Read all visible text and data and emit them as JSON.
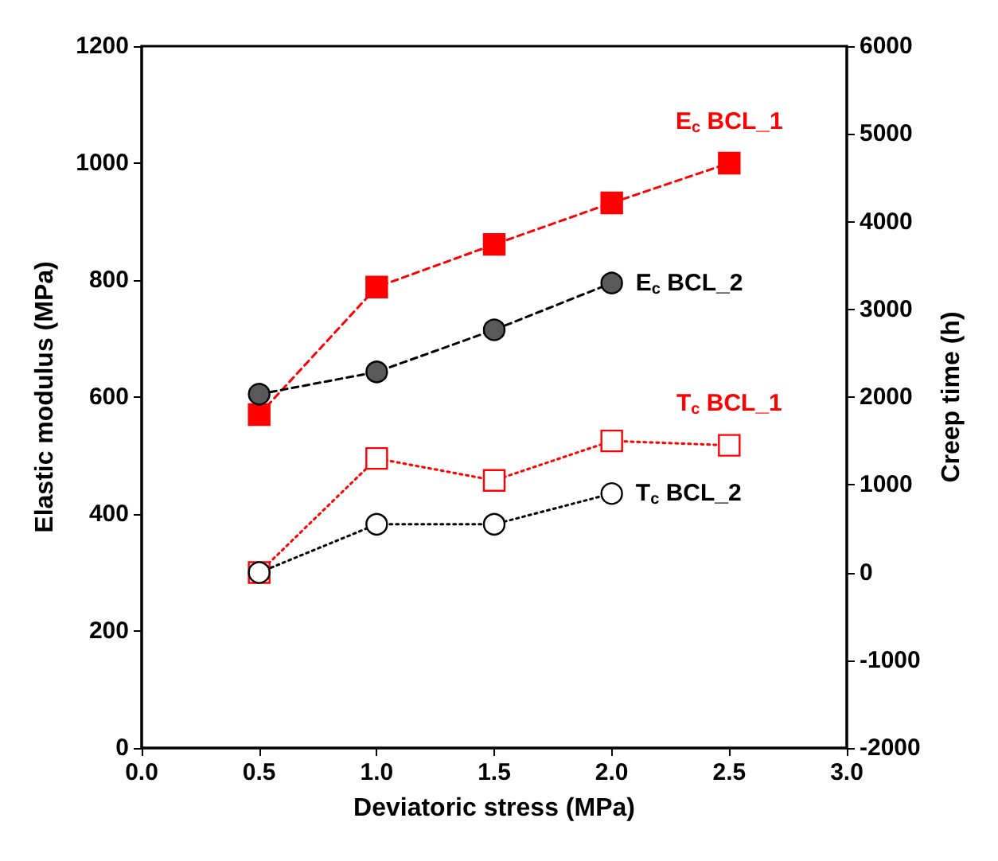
{
  "chart_data": {
    "type": "line",
    "xlabel": "Deviatoric stress (MPa)",
    "ylabel": "Elastic modulus (MPa)",
    "y2label": "Creep time (h)",
    "x": [
      0.5,
      1.0,
      1.5,
      2.0,
      2.5
    ],
    "xlim": [
      0,
      3
    ],
    "xticks": [
      {
        "value": 0,
        "label": "0.0"
      },
      {
        "value": 0.5,
        "label": "0.5"
      },
      {
        "value": 1,
        "label": "1.0"
      },
      {
        "value": 1.5,
        "label": "1.5"
      },
      {
        "value": 2,
        "label": "2.0"
      },
      {
        "value": 2.5,
        "label": "2.5"
      },
      {
        "value": 3,
        "label": "3.0"
      }
    ],
    "ylim": [
      0,
      1200
    ],
    "yticks": [
      0,
      200,
      400,
      600,
      800,
      1000,
      1200
    ],
    "y2lim": [
      -2000,
      6000
    ],
    "y2ticks": [
      -2000,
      -1000,
      0,
      1000,
      2000,
      3000,
      4000,
      5000,
      6000
    ],
    "grid": false,
    "legend": false,
    "series": [
      {
        "name": "E$_{c}$ BCL_1",
        "color": "#ff0000",
        "marker": "square",
        "line_style": "dashed",
        "values": [
          570,
          788,
          861,
          932,
          1000
        ]
      },
      {
        "name": "E$_{c}$ BCL_2",
        "color": "#000000",
        "marker": "circle",
        "line_style": "dashed",
        "values": [
          605,
          643,
          715,
          795,
          null
        ]
      },
      {
        "name": "T$_{c}$ BCL_1",
        "color": "#ff0000",
        "marker": "square",
        "line_style": "dotted",
        "axis": "y2",
        "values": [
          0,
          1300,
          1050,
          1500,
          1450
        ]
      },
      {
        "name": "T$_{c}$ BCL_2",
        "color": "#000000",
        "marker": "circle",
        "line_style": "dotted",
        "axis": "y2",
        "values": [
          0,
          550,
          550,
          900,
          null
        ]
      }
    ]
  }
}
